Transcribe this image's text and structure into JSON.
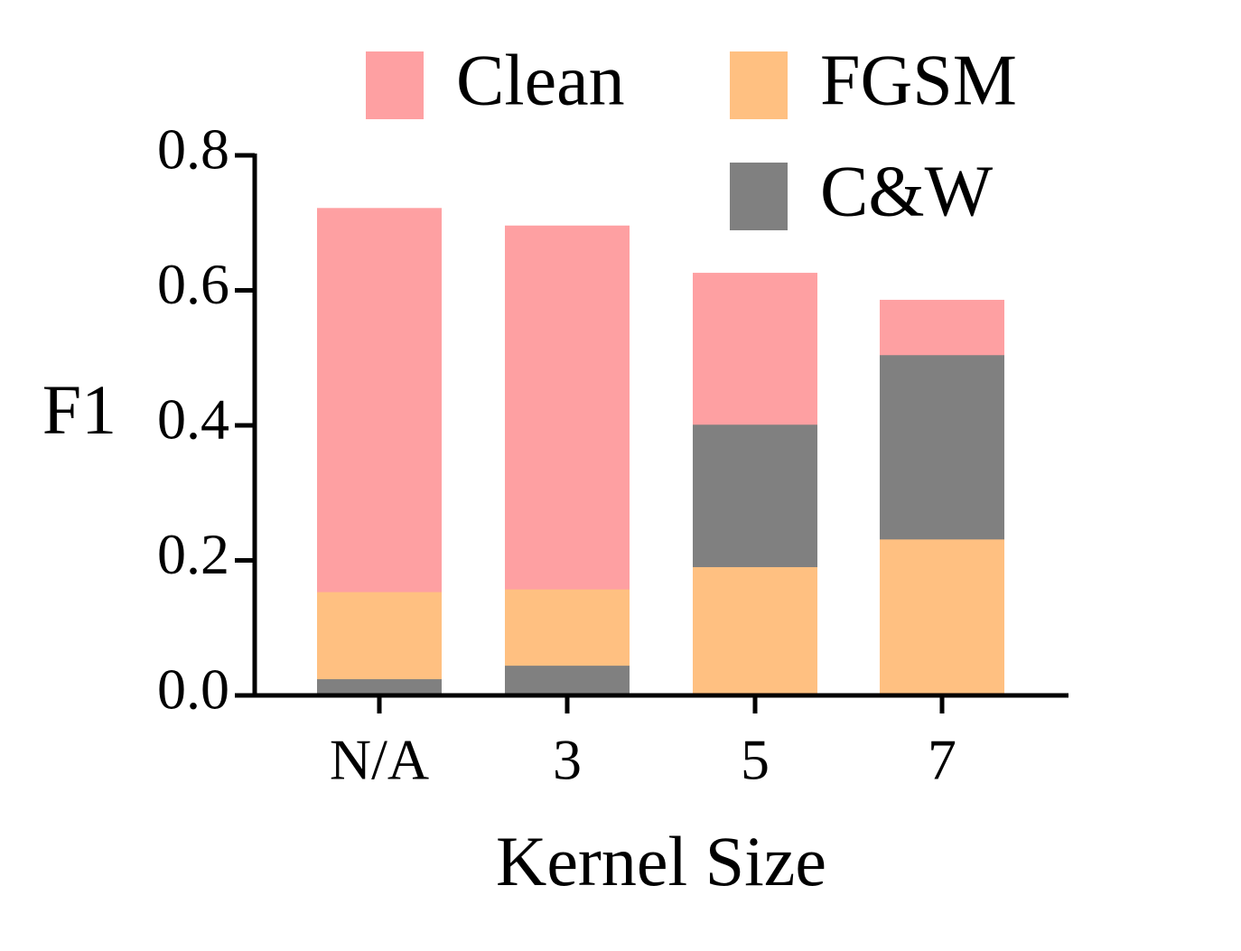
{
  "chart_data": {
    "type": "bar",
    "x_label": "Kernel Size",
    "y_label": "F1",
    "categories": [
      "N/A",
      "3",
      "5",
      "7"
    ],
    "series": [
      {
        "name": "Clean",
        "color": "#fea0a2",
        "values": [
          0.722,
          0.696,
          0.626,
          0.586
        ]
      },
      {
        "name": "FGSM",
        "color": "#ffc081",
        "values": [
          0.153,
          0.157,
          0.19,
          0.231
        ]
      },
      {
        "name": "C&W",
        "color": "#808080",
        "values": [
          0.024,
          0.044,
          0.401,
          0.504
        ]
      }
    ],
    "ylim": [
      0,
      0.8
    ],
    "yticks": [
      {
        "value": 0,
        "label": "0.0"
      },
      0.2,
      0.4,
      0.6,
      0.8
    ],
    "grid": false
  }
}
